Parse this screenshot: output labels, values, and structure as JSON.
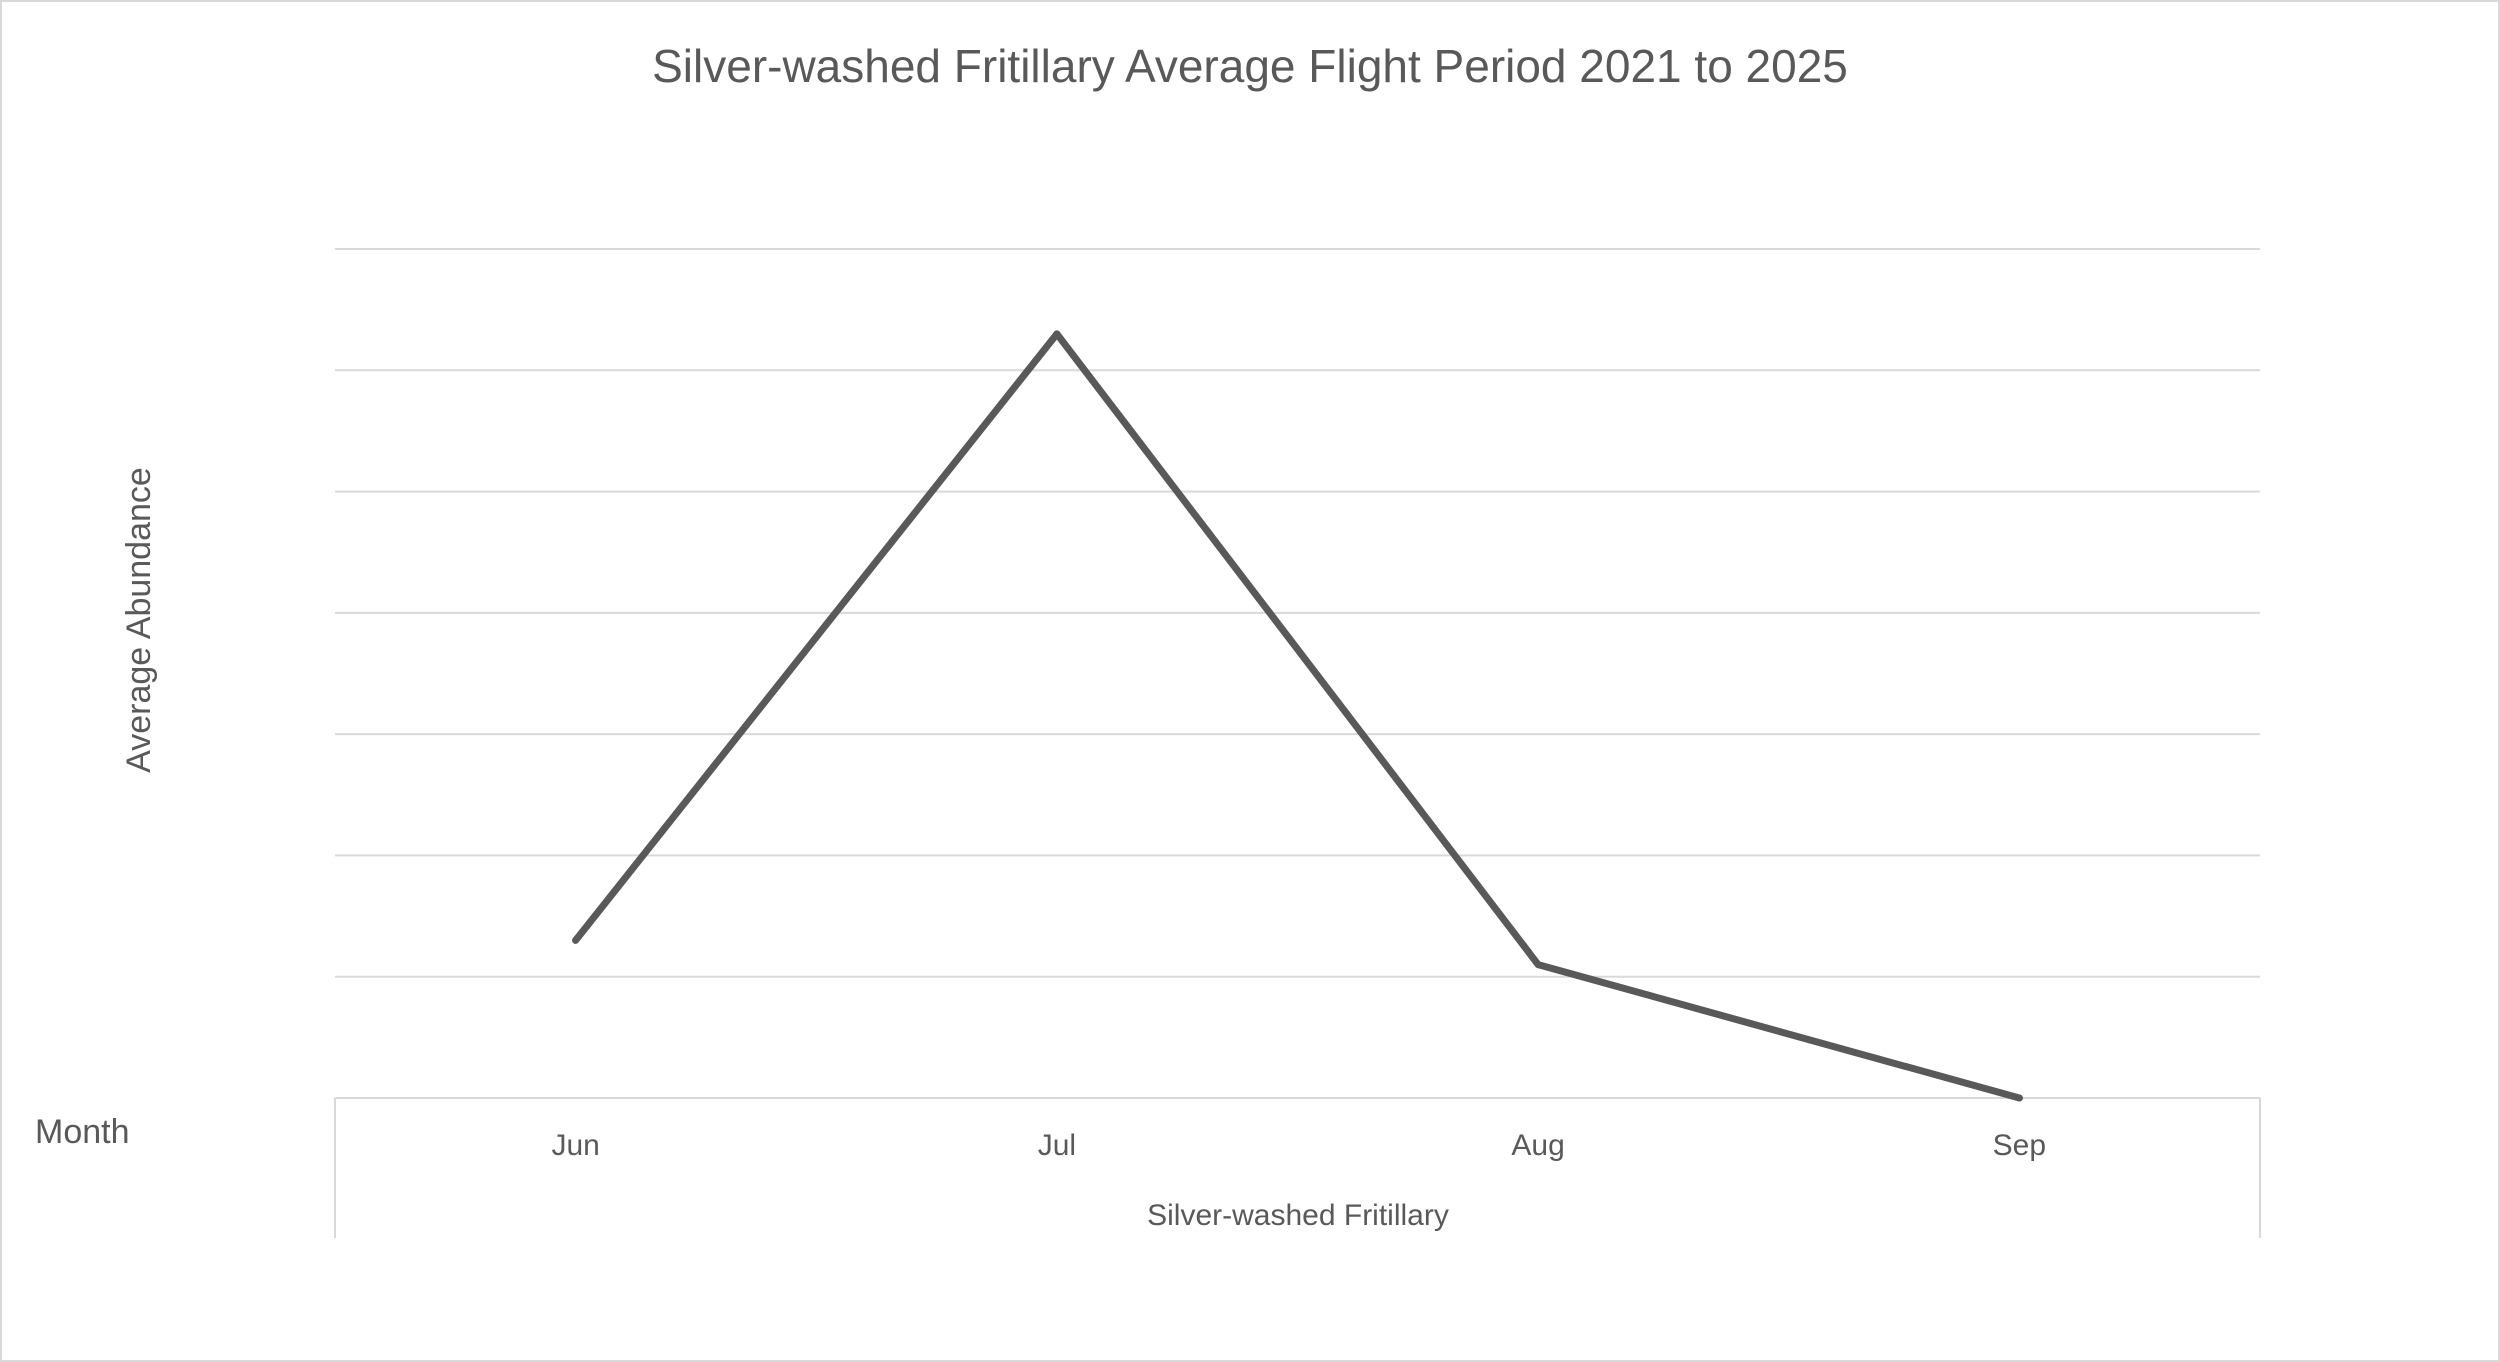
{
  "chart_data": {
    "type": "line",
    "title": "Silver-washed Fritillary Average Flight Period 2021 to 2025",
    "ylabel": "Average Abundance",
    "xlabel": "Silver-washed Fritillary",
    "field_button": "Month",
    "categories": [
      "Jun",
      "Jul",
      "Aug",
      "Sep"
    ],
    "series": [
      {
        "values": [
          1.3,
          6.3,
          1.1,
          0.0
        ]
      }
    ],
    "ylim": [
      0,
      7
    ],
    "grid": true,
    "legend": "none",
    "colors": {
      "series": "#595959",
      "grid": "#d9d9d9",
      "text": "#595959"
    }
  }
}
